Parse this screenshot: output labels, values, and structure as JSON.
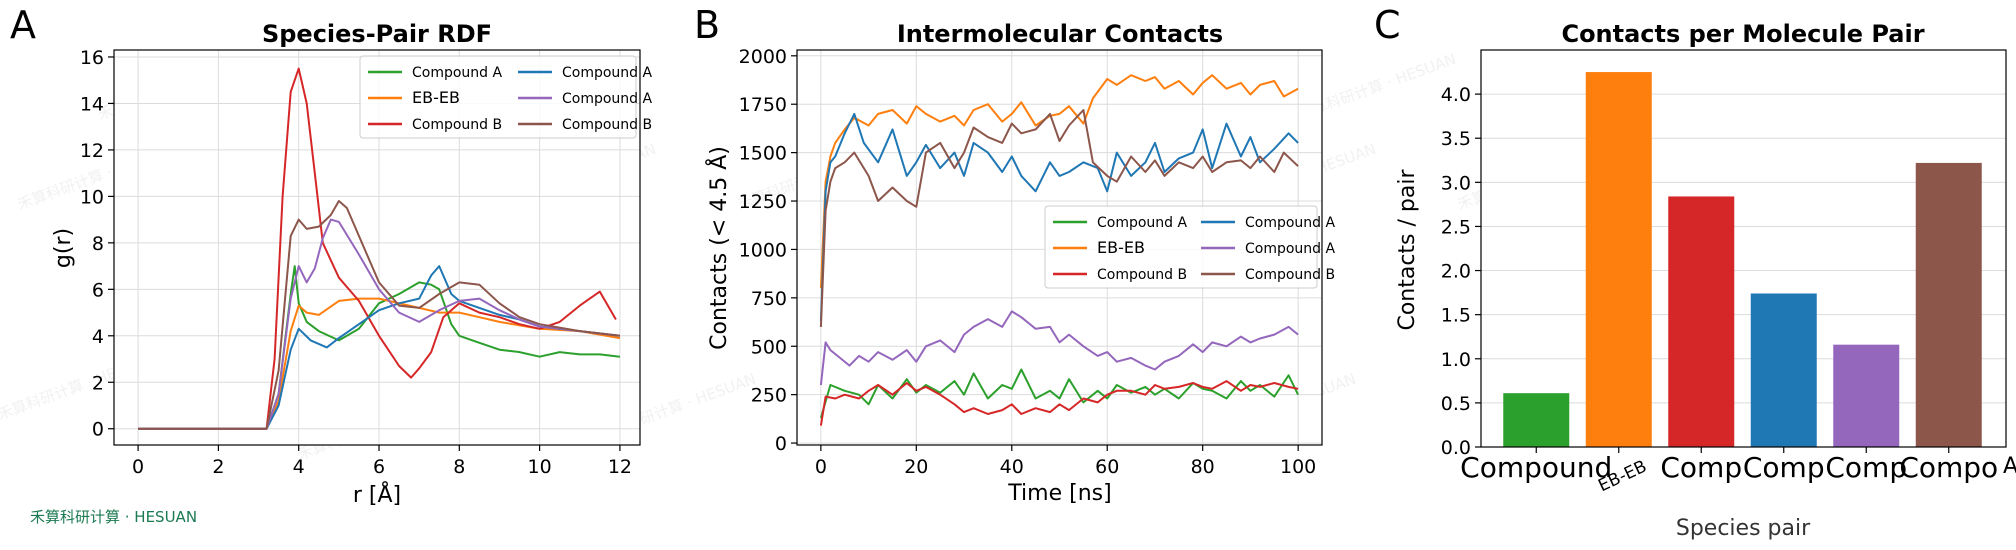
{
  "figure": {
    "watermark": "禾算科研计算 · HESUAN",
    "background_watermark": "禾算科研计算 · HESUAN",
    "accent_colors": {
      "green": "#2ca02c",
      "orange": "#ff7f0e",
      "red": "#d62728",
      "blue": "#1f77b4",
      "purple": "#9467bd",
      "brown": "#8c564b"
    }
  },
  "chart_data": [
    {
      "panel": "A",
      "type": "line",
      "title": "Species-Pair RDF",
      "xlabel": "r [Å]",
      "ylabel": "g(r)",
      "xlim": [
        -0.6,
        12.5
      ],
      "ylim": [
        -0.7,
        16.3
      ],
      "xticks": [
        0,
        2,
        4,
        6,
        8,
        10,
        12
      ],
      "yticks": [
        0,
        2,
        4,
        6,
        8,
        10,
        12,
        14,
        16
      ],
      "grid": true,
      "legend": {
        "position": "top-right",
        "columns": 2
      },
      "series": [
        {
          "name": "Compound A",
          "color": "#2ca02c",
          "x": [
            0,
            3.2,
            3.5,
            3.8,
            3.9,
            4.0,
            4.2,
            4.5,
            5.0,
            5.5,
            6.0,
            6.5,
            7.0,
            7.3,
            7.5,
            7.8,
            8.0,
            8.5,
            9.0,
            9.5,
            10.0,
            10.5,
            11.0,
            11.5,
            12.0
          ],
          "y": [
            0,
            0,
            1.5,
            5.8,
            7.0,
            5.4,
            4.6,
            4.2,
            3.8,
            4.3,
            5.4,
            5.8,
            6.3,
            6.2,
            6.0,
            4.5,
            4.0,
            3.7,
            3.4,
            3.3,
            3.1,
            3.3,
            3.2,
            3.2,
            3.1
          ]
        },
        {
          "name": "EB-EB",
          "color": "#ff7f0e",
          "x": [
            0,
            3.2,
            3.5,
            3.8,
            4.0,
            4.2,
            4.5,
            5.0,
            5.5,
            6.0,
            6.5,
            7.0,
            7.5,
            8.0,
            8.5,
            9.0,
            10.0,
            11.0,
            12.0
          ],
          "y": [
            0,
            0,
            1.2,
            4.2,
            5.3,
            5.0,
            4.9,
            5.5,
            5.6,
            5.6,
            5.4,
            5.2,
            5.0,
            5.0,
            4.8,
            4.6,
            4.3,
            4.2,
            3.9
          ]
        },
        {
          "name": "Compound B",
          "color": "#d62728",
          "x": [
            0,
            3.2,
            3.4,
            3.6,
            3.8,
            4.0,
            4.2,
            4.4,
            4.6,
            5.0,
            5.5,
            6.0,
            6.5,
            6.8,
            7.0,
            7.3,
            7.6,
            8.0,
            8.5,
            9.0,
            9.5,
            10.0,
            10.5,
            11.0,
            11.5,
            11.9
          ],
          "y": [
            0,
            0,
            3.0,
            10.0,
            14.5,
            15.5,
            14.0,
            11.0,
            8.0,
            6.5,
            5.5,
            4.0,
            2.7,
            2.2,
            2.6,
            3.3,
            4.8,
            5.4,
            5.0,
            4.8,
            4.5,
            4.3,
            4.6,
            5.3,
            5.9,
            4.7
          ]
        },
        {
          "name": "Compound A",
          "color": "#1f77b4",
          "x": [
            0,
            3.2,
            3.5,
            3.8,
            4.0,
            4.3,
            4.7,
            5.0,
            5.5,
            6.0,
            6.5,
            7.0,
            7.3,
            7.5,
            7.8,
            8.0,
            8.5,
            9.0,
            9.5,
            10.0,
            11.0,
            12.0
          ],
          "y": [
            0,
            0,
            1.0,
            3.4,
            4.3,
            3.8,
            3.5,
            3.9,
            4.5,
            5.1,
            5.4,
            5.6,
            6.6,
            7.0,
            5.8,
            5.5,
            5.2,
            4.9,
            4.7,
            4.4,
            4.2,
            4.0
          ]
        },
        {
          "name": "Compound A",
          "color": "#9467bd",
          "x": [
            0,
            3.2,
            3.5,
            3.8,
            4.0,
            4.2,
            4.4,
            4.6,
            4.8,
            5.0,
            5.5,
            6.0,
            6.5,
            7.0,
            7.5,
            8.0,
            8.5,
            9.0,
            9.5,
            10.0,
            11.0,
            12.0
          ],
          "y": [
            0,
            0,
            1.5,
            5.6,
            7.0,
            6.3,
            6.9,
            8.2,
            9.0,
            8.9,
            7.5,
            6.0,
            5.0,
            4.6,
            5.1,
            5.5,
            5.6,
            5.1,
            4.7,
            4.4,
            4.2,
            4.0
          ]
        },
        {
          "name": "Compound B",
          "color": "#8c564b",
          "x": [
            0,
            3.2,
            3.5,
            3.8,
            4.0,
            4.2,
            4.5,
            4.8,
            5.0,
            5.2,
            5.5,
            6.0,
            6.5,
            7.0,
            7.5,
            8.0,
            8.5,
            9.0,
            9.5,
            10.0,
            11.0,
            12.0
          ],
          "y": [
            0,
            0,
            2.5,
            8.3,
            9.0,
            8.6,
            8.7,
            9.2,
            9.8,
            9.5,
            8.3,
            6.3,
            5.3,
            5.2,
            5.8,
            6.3,
            6.2,
            5.4,
            4.8,
            4.5,
            4.2,
            4.0
          ]
        }
      ]
    },
    {
      "panel": "B",
      "type": "line",
      "title": "Intermolecular Contacts",
      "xlabel": "Time [ns]",
      "ylabel": "Contacts (< 4.5 Å)",
      "xlim": [
        -5,
        105
      ],
      "ylim": [
        -10,
        2030
      ],
      "xticks": [
        0,
        20,
        40,
        60,
        80,
        100
      ],
      "yticks": [
        0,
        250,
        500,
        750,
        1000,
        1250,
        1500,
        1750,
        2000
      ],
      "grid": true,
      "legend": {
        "position": "center-right",
        "columns": 2
      },
      "series": [
        {
          "name": "Compound A",
          "color": "#2ca02c",
          "x": [
            0,
            2,
            5,
            8,
            10,
            12,
            15,
            18,
            20,
            22,
            25,
            28,
            30,
            32,
            35,
            38,
            40,
            42,
            45,
            48,
            50,
            52,
            55,
            58,
            60,
            62,
            65,
            68,
            70,
            72,
            75,
            78,
            80,
            82,
            85,
            88,
            90,
            92,
            95,
            98,
            100
          ],
          "y": [
            130,
            300,
            270,
            250,
            200,
            300,
            230,
            330,
            260,
            300,
            260,
            320,
            250,
            360,
            230,
            300,
            280,
            380,
            230,
            270,
            230,
            330,
            210,
            270,
            230,
            300,
            260,
            290,
            250,
            280,
            230,
            310,
            280,
            270,
            230,
            320,
            270,
            300,
            240,
            350,
            250
          ]
        },
        {
          "name": "EB-EB",
          "color": "#ff7f0e",
          "x": [
            0,
            1,
            2,
            3,
            5,
            7,
            10,
            12,
            15,
            18,
            20,
            22,
            25,
            28,
            30,
            32,
            35,
            38,
            40,
            42,
            45,
            48,
            50,
            52,
            55,
            57,
            60,
            62,
            65,
            68,
            70,
            72,
            75,
            78,
            80,
            82,
            85,
            88,
            90,
            92,
            95,
            97,
            100
          ],
          "y": [
            800,
            1350,
            1480,
            1550,
            1620,
            1680,
            1640,
            1700,
            1720,
            1650,
            1740,
            1700,
            1660,
            1690,
            1640,
            1720,
            1750,
            1660,
            1700,
            1760,
            1640,
            1690,
            1700,
            1740,
            1650,
            1780,
            1880,
            1850,
            1900,
            1870,
            1890,
            1830,
            1870,
            1800,
            1860,
            1900,
            1830,
            1860,
            1800,
            1850,
            1870,
            1790,
            1830
          ]
        },
        {
          "name": "Compound B",
          "color": "#d62728",
          "x": [
            0,
            1,
            3,
            5,
            8,
            10,
            12,
            15,
            18,
            20,
            22,
            25,
            28,
            30,
            32,
            35,
            38,
            40,
            42,
            45,
            48,
            50,
            52,
            55,
            58,
            60,
            62,
            65,
            68,
            70,
            72,
            75,
            78,
            80,
            82,
            85,
            88,
            90,
            92,
            95,
            98,
            100
          ],
          "y": [
            90,
            240,
            230,
            250,
            230,
            270,
            300,
            250,
            310,
            270,
            290,
            250,
            200,
            160,
            180,
            150,
            170,
            200,
            150,
            180,
            160,
            200,
            170,
            230,
            210,
            250,
            270,
            270,
            250,
            300,
            280,
            290,
            310,
            290,
            280,
            320,
            270,
            300,
            290,
            310,
            290,
            280
          ]
        },
        {
          "name": "Compound A",
          "color": "#1f77b4",
          "x": [
            0,
            1,
            2,
            3,
            5,
            7,
            9,
            12,
            15,
            18,
            20,
            22,
            25,
            28,
            30,
            32,
            35,
            38,
            40,
            42,
            45,
            48,
            50,
            52,
            55,
            58,
            60,
            62,
            65,
            68,
            70,
            72,
            75,
            78,
            80,
            82,
            85,
            88,
            90,
            92,
            95,
            98,
            100
          ],
          "y": [
            630,
            1300,
            1450,
            1480,
            1600,
            1700,
            1550,
            1450,
            1620,
            1380,
            1450,
            1540,
            1420,
            1500,
            1380,
            1550,
            1500,
            1400,
            1480,
            1380,
            1300,
            1450,
            1380,
            1400,
            1450,
            1420,
            1300,
            1500,
            1380,
            1450,
            1550,
            1400,
            1470,
            1500,
            1620,
            1420,
            1650,
            1480,
            1580,
            1450,
            1520,
            1600,
            1550
          ]
        },
        {
          "name": "Compound A",
          "color": "#9467bd",
          "x": [
            0,
            1,
            2,
            4,
            6,
            8,
            10,
            12,
            15,
            18,
            20,
            22,
            25,
            28,
            30,
            32,
            35,
            38,
            40,
            42,
            45,
            48,
            50,
            52,
            55,
            58,
            60,
            62,
            65,
            68,
            70,
            72,
            75,
            78,
            80,
            82,
            85,
            88,
            90,
            92,
            95,
            98,
            100
          ],
          "y": [
            300,
            520,
            480,
            440,
            400,
            450,
            420,
            470,
            430,
            480,
            420,
            500,
            530,
            470,
            560,
            600,
            640,
            600,
            680,
            650,
            590,
            600,
            520,
            560,
            500,
            450,
            470,
            420,
            440,
            400,
            380,
            420,
            450,
            510,
            470,
            520,
            500,
            550,
            520,
            540,
            560,
            600,
            560
          ]
        },
        {
          "name": "Compound B",
          "color": "#8c564b",
          "x": [
            0,
            1,
            2,
            3,
            5,
            7,
            10,
            12,
            15,
            18,
            20,
            22,
            25,
            28,
            30,
            32,
            35,
            38,
            40,
            42,
            45,
            48,
            50,
            52,
            55,
            57,
            60,
            62,
            65,
            68,
            70,
            72,
            75,
            78,
            80,
            82,
            85,
            88,
            90,
            92,
            95,
            97,
            100
          ],
          "y": [
            600,
            1200,
            1350,
            1420,
            1450,
            1500,
            1380,
            1250,
            1320,
            1250,
            1220,
            1500,
            1550,
            1420,
            1500,
            1630,
            1580,
            1550,
            1650,
            1600,
            1620,
            1700,
            1560,
            1640,
            1720,
            1450,
            1380,
            1350,
            1480,
            1400,
            1460,
            1380,
            1450,
            1420,
            1480,
            1400,
            1450,
            1460,
            1420,
            1480,
            1400,
            1500,
            1430
          ]
        }
      ]
    },
    {
      "panel": "C",
      "type": "bar",
      "title": "Contacts per Molecule Pair",
      "xlabel": "Species pair",
      "ylabel": "Contacts / pair",
      "ylim": [
        0,
        4.5
      ],
      "yticks": [
        0.0,
        0.5,
        1.0,
        1.5,
        2.0,
        2.5,
        3.0,
        3.5,
        4.0
      ],
      "ytick_labels": [
        "0.0",
        "0.5",
        "1.0",
        "1.5",
        "2.0",
        "2.5",
        "3.0",
        "3.5",
        "4.0"
      ],
      "grid": true,
      "categories": [
        "Compound A",
        "EB-EB",
        "Compound B",
        "Compound A",
        "Compound A",
        "Compound B"
      ],
      "visible_tick_labels": [
        "Compound",
        "EB-EB",
        "Comp",
        "Comp",
        "Comp",
        "Compo"
      ],
      "edge_label": "A",
      "colors": [
        "#2ca02c",
        "#ff7f0e",
        "#d62728",
        "#1f77b4",
        "#9467bd",
        "#8c564b"
      ],
      "values": [
        0.61,
        4.25,
        2.84,
        1.74,
        1.16,
        3.22
      ]
    }
  ],
  "panel_labels": [
    "A",
    "B",
    "C"
  ]
}
